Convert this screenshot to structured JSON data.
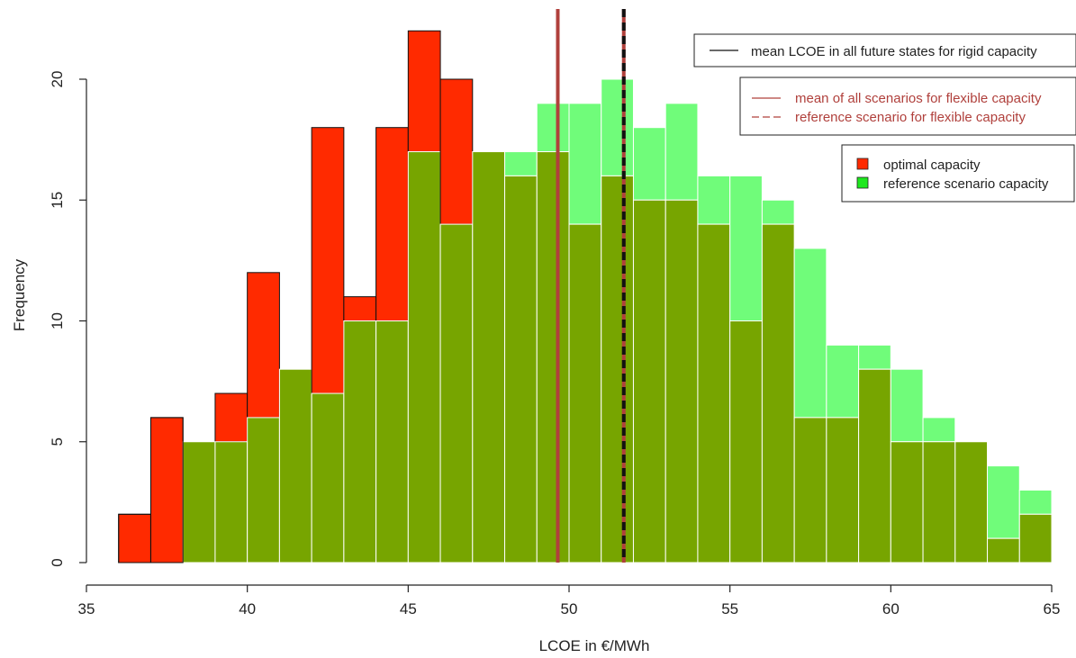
{
  "colors": {
    "optimal": "#ff2a00",
    "reference": "#70fc7a",
    "overlap": "#77a500",
    "rigid_mean_line": "#111111",
    "flexible_line": "#b0403c"
  },
  "chart_data": {
    "type": "histogram",
    "xlabel": "LCOE in €/MWh",
    "ylabel": "Frequency",
    "xlim": [
      35,
      65
    ],
    "ylim": [
      0,
      22
    ],
    "xticks": [
      "35",
      "40",
      "45",
      "50",
      "55",
      "60",
      "65"
    ],
    "yticks": [
      "0",
      "5",
      "10",
      "15",
      "20"
    ],
    "bin_width": 1,
    "bin_starts": [
      36,
      37,
      38,
      39,
      40,
      41,
      42,
      43,
      44,
      45,
      46,
      47,
      48,
      49,
      50,
      51,
      52,
      53,
      54,
      55,
      56,
      57,
      58,
      59,
      60,
      61,
      62,
      63,
      64
    ],
    "series": [
      {
        "name": "optimal capacity",
        "values": [
          2,
          6,
          5,
          7,
          12,
          8,
          18,
          11,
          18,
          22,
          20,
          17,
          16,
          17,
          14,
          16,
          15,
          15,
          14,
          10,
          14,
          6,
          6,
          8,
          5,
          5,
          5,
          1,
          2
        ]
      },
      {
        "name": "reference scenario capacity",
        "values": [
          0,
          0,
          5,
          5,
          6,
          8,
          7,
          10,
          10,
          17,
          14,
          17,
          17,
          19,
          19,
          20,
          18,
          19,
          16,
          16,
          15,
          13,
          9,
          9,
          8,
          6,
          5,
          4,
          3
        ]
      }
    ],
    "vertical_lines": [
      {
        "name": "mean of all scenarios for flexible capacity",
        "x": 49.65
      },
      {
        "name": "reference scenario for flexible capacity",
        "x": 51.7
      },
      {
        "name": "mean LCOE in all future states for rigid capacity",
        "x": 51.7
      }
    ],
    "legends": [
      {
        "entries": [
          "mean LCOE in all future states for rigid capacity"
        ]
      },
      {
        "entries": [
          "mean of all scenarios for flexible capacity",
          "reference scenario for flexible capacity"
        ]
      },
      {
        "entries": [
          "optimal capacity",
          "reference scenario capacity"
        ]
      }
    ]
  }
}
